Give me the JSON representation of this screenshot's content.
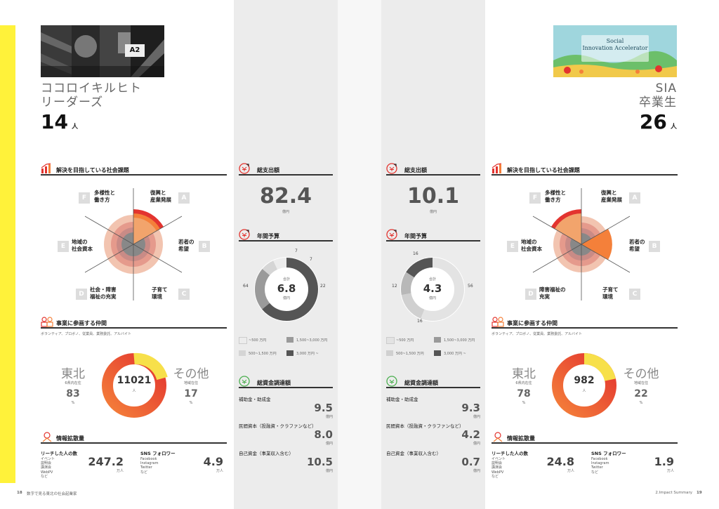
{
  "left": {
    "title_line1": "ココロイキルヒト",
    "title_line2": "リーダーズ",
    "count": "14",
    "count_unit": "人",
    "photo_sign": "A2",
    "issues": {
      "title": "解決を目指している社会課題",
      "topics": {
        "A": "復興と\n産業発展",
        "B": "若者の\n希望",
        "C": "子育て\n環境",
        "D": "社会・障害\n福祉の充実",
        "E": "地域の\n社会資本",
        "F": "多様性と\n働き方"
      }
    },
    "members": {
      "title": "事業に参画する仲間",
      "sub": "ボランティア、プロボノ、従業員、業務委託、アルバイト",
      "total": "11021",
      "total_unit": "人",
      "tohoku_label": "東北",
      "tohoku_sub": "6県内在住",
      "tohoku_pct": "83",
      "other_label": "その他",
      "other_sub": "地域在住",
      "other_pct": "17",
      "pct_unit": "%"
    },
    "info": {
      "title": "情報拡散量",
      "reach_label": "リーチした人の数",
      "reach_items": [
        "イベント",
        "説明会",
        "講演会",
        "WebPV",
        "など"
      ],
      "reach_value": "247.2",
      "reach_unit": "万人",
      "sns_label": "SNS フォロワー",
      "sns_value": "4.9",
      "sns_unit": "万人"
    }
  },
  "left_mid": {
    "spend_title": "総支出額",
    "spend_value": "82.4",
    "spend_unit": "億円",
    "budget_title": "年間予算",
    "budget_total_label": "合計",
    "budget_total": "6.8",
    "budget_unit": "億円",
    "budget_pcts": [
      "7",
      "7",
      "22",
      "64"
    ],
    "pct_unit": "%",
    "legend": [
      "~500 万円",
      "1,500~3,000 万円",
      "500~1,500 万円",
      "3,000 万円 ~"
    ],
    "fund_title": "総資金調達額",
    "fund_rows": [
      {
        "label": "補助金・助成金",
        "value": "9.5",
        "unit": "億円"
      },
      {
        "label": "民間資本（投融資・クラファンなど）",
        "value": "8.0",
        "unit": "億円"
      },
      {
        "label": "自己資金（事業収入含む）",
        "value": "10.5",
        "unit": "億円"
      }
    ]
  },
  "right_mid": {
    "spend_title": "総支出額",
    "spend_value": "10.1",
    "spend_unit": "億円",
    "budget_title": "年間予算",
    "budget_total_label": "合計",
    "budget_total": "4.3",
    "budget_unit": "億円",
    "budget_pcts": [
      "16",
      "56",
      "16",
      "12"
    ],
    "pct_unit": "%",
    "legend": [
      "~500 万円",
      "1,500~3,000 万円",
      "500~1,500 万円",
      "3,000 万円 ~"
    ],
    "fund_title": "総資金調達額",
    "fund_rows": [
      {
        "label": "補助金・助成金",
        "value": "9.3",
        "unit": "億円"
      },
      {
        "label": "民間資本（投融資・クラファンなど）",
        "value": "4.2",
        "unit": "億円"
      },
      {
        "label": "自己資金（事業収入含む）",
        "value": "0.7",
        "unit": "億円"
      }
    ]
  },
  "right": {
    "title_line1": "SIA",
    "title_line2": "卒業生",
    "count": "26",
    "count_unit": "人",
    "banner_line1": "Social",
    "banner_line2": "Innovation Accelerator",
    "issues": {
      "title": "解決を目指している社会課題",
      "topics": {
        "A": "復興と\n産業発展",
        "B": "若者の\n希望",
        "C": "子育て\n環境",
        "D": "障害福祉の\n充実",
        "E": "地域の\n社会資本",
        "F": "多様性と\n働き方"
      }
    },
    "members": {
      "title": "事業に参画する仲間",
      "sub": "ボランティア、プロボノ、従業員、業務委託、アルバイト",
      "total": "982",
      "total_unit": "人",
      "tohoku_label": "東北",
      "tohoku_sub": "6県内在住",
      "tohoku_pct": "78",
      "other_label": "その他",
      "other_sub": "地域在住",
      "other_pct": "22",
      "pct_unit": "%"
    },
    "info": {
      "title": "情報拡散量",
      "reach_label": "リーチした人の数",
      "reach_items": [
        "イベント",
        "説明会",
        "講演会",
        "WebPV",
        "など"
      ],
      "reach_value": "24.8",
      "reach_unit": "万人",
      "sns_label": "SNS フォロワー",
      "sns_items": [
        "Facebook",
        "Instagram",
        "Twitter",
        "など"
      ],
      "sns_value": "1.9",
      "sns_unit": "万人"
    }
  },
  "left_sns_items": [
    "Facebook",
    "Instagram",
    "Twitter",
    "など"
  ],
  "footer": {
    "left_page": "18",
    "left_text": "数字で見る東北の社会起業家",
    "right_text": "2.Impact Summary",
    "right_page": "19"
  },
  "colors": {
    "yellow": "#fff23a",
    "red": "#e3342f",
    "orange": "#f4803a",
    "peach": "#f2b48a",
    "ring_yellow": "#f7e04a"
  }
}
